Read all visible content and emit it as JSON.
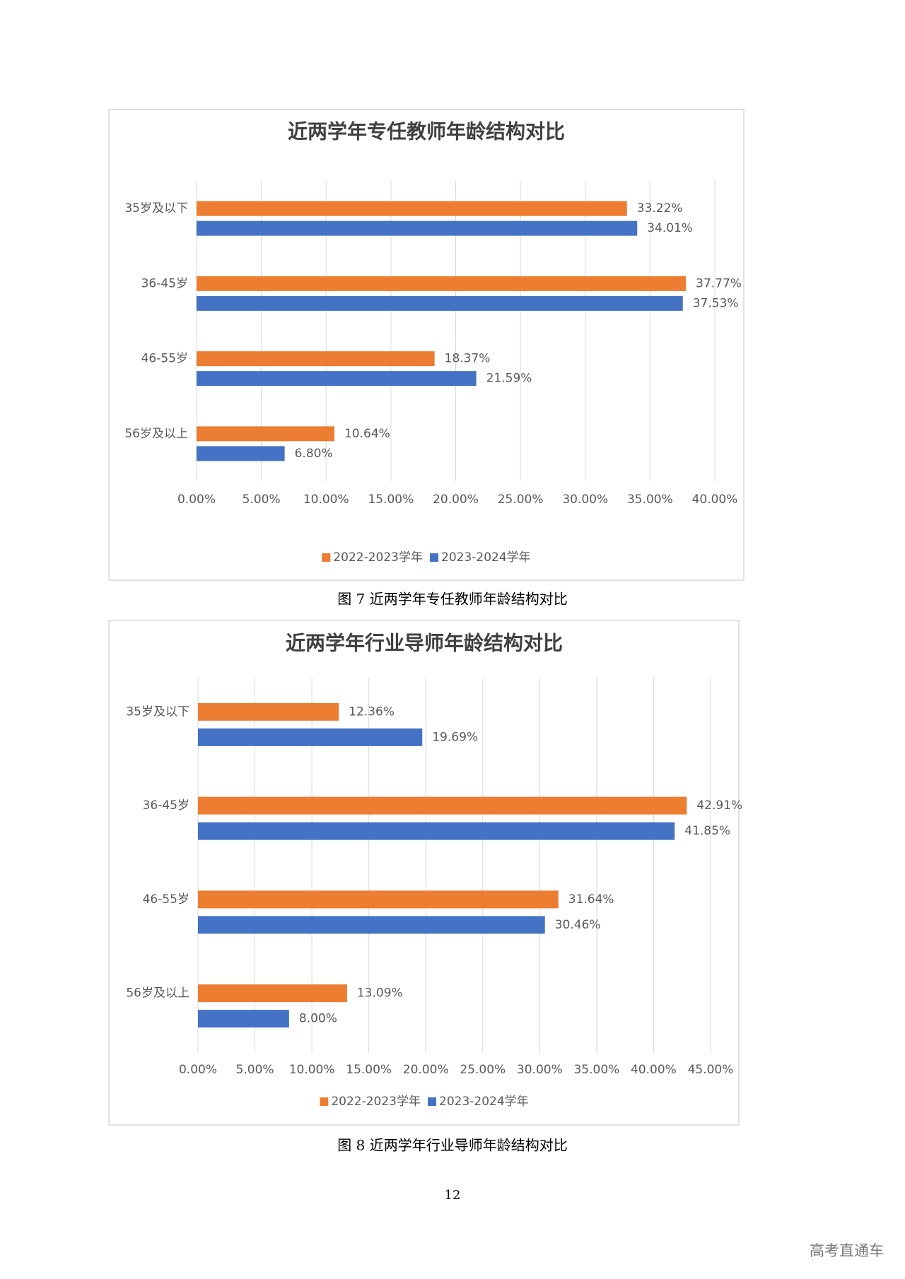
{
  "chart_data": [
    {
      "type": "bar",
      "orientation": "horizontal",
      "title": "近两学年专任教师年龄结构对比",
      "categories": [
        "35岁及以下",
        "36-45岁",
        "46-55岁",
        "56岁及以上"
      ],
      "series": [
        {
          "name": "2022-2023学年",
          "color": "#ed7d31",
          "values": [
            33.22,
            37.77,
            18.37,
            10.64
          ],
          "value_labels": [
            "33.22%",
            "37.77%",
            "18.37%",
            "10.64%"
          ]
        },
        {
          "name": "2023-2024学年",
          "color": "#4472c4",
          "values": [
            34.01,
            37.53,
            21.59,
            6.8
          ],
          "value_labels": [
            "34.01%",
            "37.53%",
            "21.59%",
            "6.80%"
          ]
        }
      ],
      "xlim": [
        0,
        40
      ],
      "xticks": [
        {
          "value": 0,
          "label": "0.00%"
        },
        {
          "value": 5,
          "label": "5.00%"
        },
        {
          "value": 10,
          "label": "10.00%"
        },
        {
          "value": 15,
          "label": "15.00%"
        },
        {
          "value": 20,
          "label": "20.00%"
        },
        {
          "value": 25,
          "label": "25.00%"
        },
        {
          "value": 30,
          "label": "30.00%"
        },
        {
          "value": 35,
          "label": "35.00%"
        },
        {
          "value": 40,
          "label": "40.00%"
        }
      ],
      "grid": true,
      "legend": "bottom"
    },
    {
      "type": "bar",
      "orientation": "horizontal",
      "title": "近两学年行业导师年龄结构对比",
      "categories": [
        "35岁及以下",
        "36-45岁",
        "46-55岁",
        "56岁及以上"
      ],
      "series": [
        {
          "name": "2022-2023学年",
          "color": "#ed7d31",
          "values": [
            12.36,
            42.91,
            31.64,
            13.09
          ],
          "value_labels": [
            "12.36%",
            "42.91%",
            "31.64%",
            "13.09%"
          ]
        },
        {
          "name": "2023-2024学年",
          "color": "#4472c4",
          "values": [
            19.69,
            41.85,
            30.46,
            8.0
          ],
          "value_labels": [
            "19.69%",
            "41.85%",
            "30.46%",
            "8.00%"
          ]
        }
      ],
      "xlim": [
        0,
        45
      ],
      "xticks": [
        {
          "value": 0,
          "label": "0.00%"
        },
        {
          "value": 5,
          "label": "5.00%"
        },
        {
          "value": 10,
          "label": "10.00%"
        },
        {
          "value": 15,
          "label": "15.00%"
        },
        {
          "value": 20,
          "label": "20.00%"
        },
        {
          "value": 25,
          "label": "25.00%"
        },
        {
          "value": 30,
          "label": "30.00%"
        },
        {
          "value": 35,
          "label": "35.00%"
        },
        {
          "value": 40,
          "label": "40.00%"
        },
        {
          "value": 45,
          "label": "45.00%"
        }
      ],
      "grid": true,
      "legend": "bottom"
    }
  ],
  "captions": [
    "图 7  近两学年专任教师年龄结构对比",
    "图 8  近两学年行业导师年龄结构对比"
  ],
  "page_number": "12",
  "watermark": "高考直通车"
}
